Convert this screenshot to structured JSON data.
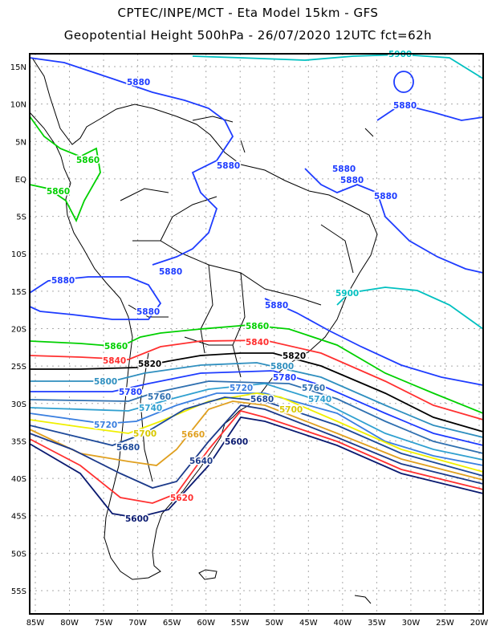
{
  "header": {
    "title_line1": "CPTEC/INPE/MCT -  Eta Model 15km - GFS",
    "title_line2": "Geopotential Height 500hPa - 26/07/2020 12UTC fct=62h"
  },
  "axes": {
    "lat_labels": [
      "15N",
      "10N",
      "5N",
      "EQ",
      "5S",
      "10S",
      "15S",
      "20S",
      "25S",
      "30S",
      "35S",
      "40S",
      "45S",
      "50S",
      "55S"
    ],
    "lon_labels": [
      "85W",
      "80W",
      "75W",
      "70W",
      "65W",
      "60W",
      "55W",
      "50W",
      "45W",
      "40W",
      "35W",
      "30W",
      "25W",
      "20W"
    ]
  },
  "contours": {
    "colors": {
      "5900": "#00c0c0",
      "5880": "#1e3cff",
      "5860": "#00d000",
      "5840": "#ff3030",
      "5820": "#000000",
      "5800": "#2f8fbf",
      "5780": "#1e3cff",
      "5760": "#2f70b0",
      "5740": "#30a0d0",
      "5720": "#3a7fe0",
      "5700": "#f0f000",
      "5680": "#1e4a9a",
      "5660": "#e0a020",
      "5640": "#1c3a8a",
      "5620": "#ff3030",
      "5600": "#0a1a70"
    },
    "labels": {
      "l5900a": "5900",
      "l5900b": "5900",
      "l5880a": "5880",
      "l5880b": "5880",
      "l5880c": "5880",
      "l5880d": "5880",
      "l5880e": "5880",
      "l5880f": "5880",
      "l5880g": "5880",
      "l5880h": "5880",
      "l5880i": "5880",
      "l5880j": "5880",
      "l5860a": "5860",
      "l5860b": "5860",
      "l5860c": "5860",
      "l5860d": "5860",
      "l5840a": "5840",
      "l5840b": "5840",
      "l5820a": "5820",
      "l5820b": "5820",
      "l5800a": "5800",
      "l5800b": "5800",
      "l5780a": "5780",
      "l5780b": "5780",
      "l5760a": "5760",
      "l5760b": "5760",
      "l5740a": "5740",
      "l5740b": "5740",
      "l5720a": "5720",
      "l5720b": "5720",
      "l5700a": "5700",
      "l5700b": "5700",
      "l5680a": "5680",
      "l5680b": "5680",
      "l5660a": "5660",
      "l5640a": "5640",
      "l5620a": "5620",
      "l5600a": "5600",
      "l5600b": "5600"
    }
  }
}
